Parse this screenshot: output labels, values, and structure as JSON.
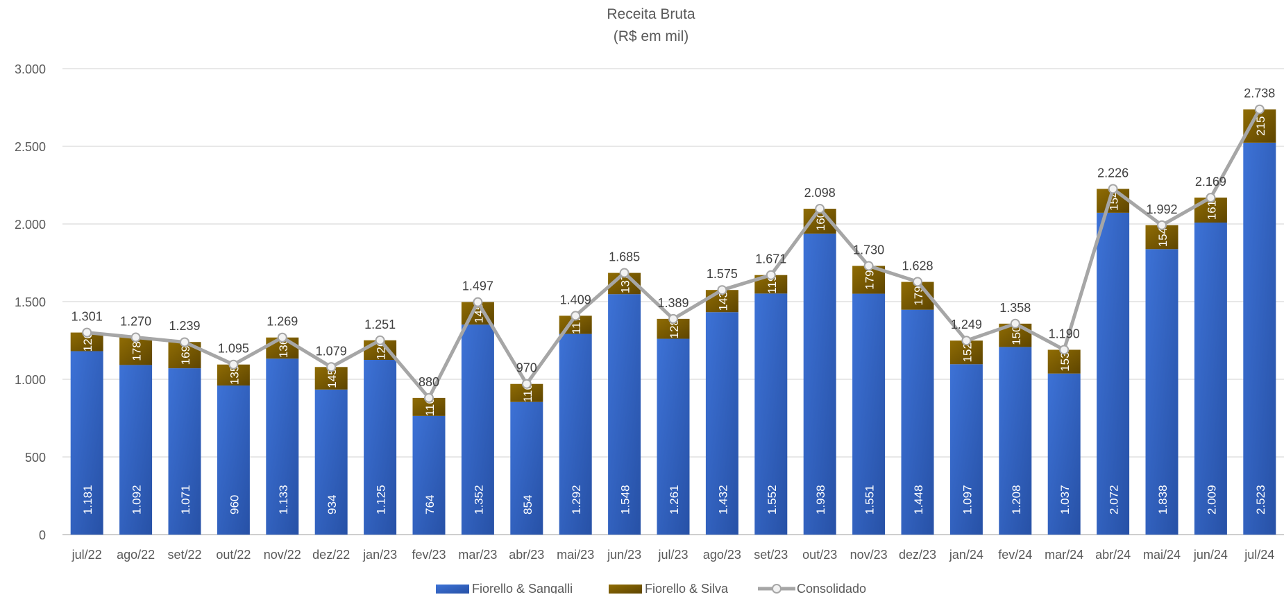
{
  "chart_data": {
    "type": "bar",
    "stacked": true,
    "title": "Receita Bruta",
    "subtitle": "(R$ em mil)",
    "xlabel": "",
    "ylabel": "",
    "ylim": [
      0,
      3000
    ],
    "yticks": [
      0,
      500,
      1000,
      1500,
      2000,
      2500,
      3000
    ],
    "ytick_labels": [
      "0",
      "500",
      "1.000",
      "1.500",
      "2.000",
      "2.500",
      "3.000"
    ],
    "grid": true,
    "legend_position": "bottom",
    "categories": [
      "jul/22",
      "ago/22",
      "set/22",
      "out/22",
      "nov/22",
      "dez/22",
      "jan/23",
      "fev/23",
      "mar/23",
      "abr/23",
      "mai/23",
      "jun/23",
      "jul/23",
      "ago/23",
      "set/23",
      "out/23",
      "nov/23",
      "dez/23",
      "jan/24",
      "fev/24",
      "mar/24",
      "abr/24",
      "mai/24",
      "jun/24",
      "jul/24"
    ],
    "series": [
      {
        "name": "Fiorello & Sangalli",
        "kind": "bar",
        "color": "#3366c8",
        "values": [
          1181,
          1092,
          1071,
          960,
          1133,
          934,
          1125,
          764,
          1352,
          854,
          1292,
          1548,
          1261,
          1432,
          1552,
          1938,
          1551,
          1448,
          1097,
          1208,
          1037,
          2072,
          1838,
          2009,
          2523
        ],
        "labels": [
          "1.181",
          "1.092",
          "1.071",
          "960",
          "1.133",
          "934",
          "1.125",
          "764",
          "1.352",
          "854",
          "1.292",
          "1.548",
          "1.261",
          "1.432",
          "1.552",
          "1.938",
          "1.551",
          "1.448",
          "1.097",
          "1.208",
          "1.037",
          "2.072",
          "1.838",
          "2.009",
          "2.523"
        ]
      },
      {
        "name": "Fiorello & Silva",
        "kind": "bar",
        "color": "#7f5f00",
        "values": [
          120,
          178,
          169,
          135,
          136,
          145,
          126,
          116,
          145,
          116,
          117,
          137,
          128,
          143,
          119,
          160,
          179,
          179,
          152,
          150,
          153,
          154,
          154,
          161,
          215
        ],
        "labels": [
          "120",
          "178",
          "169",
          "135",
          "136",
          "145",
          "126",
          "116",
          "145",
          "116",
          "117",
          "137",
          "128",
          "143",
          "119",
          "160",
          "179",
          "179",
          "152",
          "150",
          "153",
          "154",
          "154",
          "161",
          "215"
        ]
      },
      {
        "name": "Consolidado",
        "kind": "line",
        "color": "#a6a6a6",
        "values": [
          1301,
          1270,
          1239,
          1095,
          1269,
          1079,
          1251,
          880,
          1497,
          970,
          1409,
          1685,
          1389,
          1575,
          1671,
          2098,
          1730,
          1628,
          1249,
          1358,
          1190,
          2226,
          1992,
          2169,
          2738
        ],
        "labels": [
          "1.301",
          "1.270",
          "1.239",
          "1.095",
          "1.269",
          "1.079",
          "1.251",
          "880",
          "1.497",
          "970",
          "1.409",
          "1.685",
          "1.389",
          "1.575",
          "1.671",
          "2.098",
          "1.730",
          "1.628",
          "1.249",
          "1.358",
          "1.190",
          "2.226",
          "1.992",
          "2.169",
          "2.738"
        ]
      }
    ]
  }
}
